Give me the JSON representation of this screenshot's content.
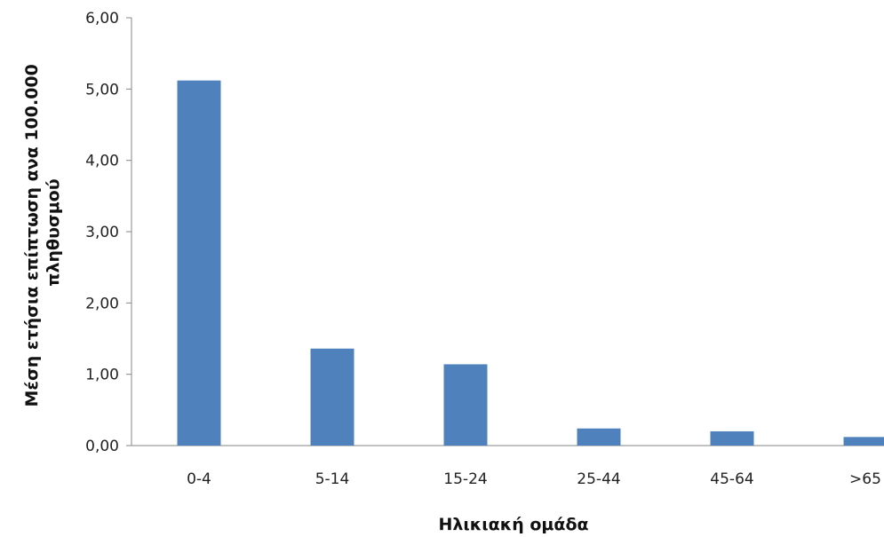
{
  "chart_data": {
    "type": "bar",
    "categories": [
      "0-4",
      "5-14",
      "15-24",
      "25-44",
      "45-64",
      ">65"
    ],
    "values": [
      5.12,
      1.36,
      1.14,
      0.24,
      0.2,
      0.12
    ],
    "y_ticks": [
      "0,00",
      "1,00",
      "2,00",
      "3,00",
      "4,00",
      "5,00",
      "6,00"
    ],
    "ylim": [
      0,
      6
    ],
    "xlabel": "Ηλικιακή ομάδα",
    "ylabel_lines": [
      "Μέση ετήσια επίπτωση ανα 100.000",
      "πληθυσμού"
    ],
    "bar_color": "#4f81bd",
    "grid": false,
    "legend": "none"
  }
}
